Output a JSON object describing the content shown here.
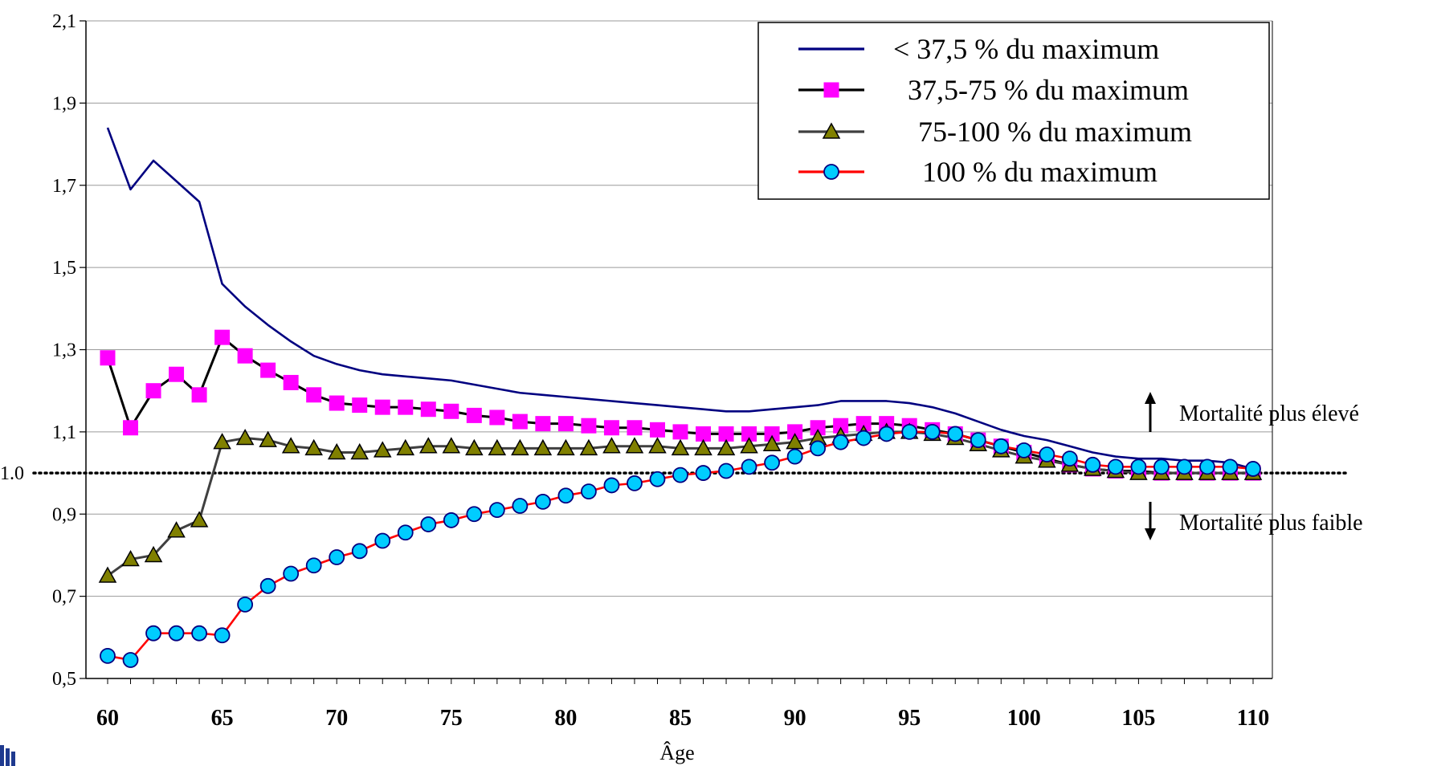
{
  "chart_data": {
    "type": "line",
    "title": "",
    "xlabel": "Âge",
    "ylabel": "",
    "xlim": [
      60,
      110
    ],
    "ylim": [
      0.5,
      2.1
    ],
    "x_ticks": [
      "60",
      "65",
      "70",
      "75",
      "80",
      "85",
      "90",
      "95",
      "100",
      "105",
      "110"
    ],
    "y_ticks": [
      "0,5",
      "0,7",
      "0,9",
      "1,1",
      "1,3",
      "1,5",
      "1,7",
      "1,9",
      "2,1"
    ],
    "grid": "horizontal",
    "legend_position": "top-right",
    "reference_line": {
      "y": 1.0,
      "label": "1.0",
      "style": "dotted"
    },
    "annotations": {
      "up": "Mortalité plus élevé",
      "down": "Mortalité plus faible"
    },
    "x": [
      60,
      61,
      62,
      63,
      64,
      65,
      66,
      67,
      68,
      69,
      70,
      71,
      72,
      73,
      74,
      75,
      76,
      77,
      78,
      79,
      80,
      81,
      82,
      83,
      84,
      85,
      86,
      87,
      88,
      89,
      90,
      91,
      92,
      93,
      94,
      95,
      96,
      97,
      98,
      99,
      100,
      101,
      102,
      103,
      104,
      105,
      106,
      107,
      108,
      109,
      110
    ],
    "series": [
      {
        "name": "< 37,5 % du maximum",
        "color": "#000080",
        "marker": "none",
        "values": [
          1.84,
          1.69,
          1.76,
          1.71,
          1.66,
          1.46,
          1.405,
          1.36,
          1.32,
          1.285,
          1.265,
          1.25,
          1.24,
          1.235,
          1.23,
          1.225,
          1.215,
          1.205,
          1.195,
          1.19,
          1.185,
          1.18,
          1.175,
          1.17,
          1.165,
          1.16,
          1.155,
          1.15,
          1.15,
          1.155,
          1.16,
          1.165,
          1.175,
          1.175,
          1.175,
          1.17,
          1.16,
          1.145,
          1.125,
          1.105,
          1.09,
          1.08,
          1.065,
          1.05,
          1.04,
          1.035,
          1.035,
          1.03,
          1.03,
          1.025,
          1.01
        ]
      },
      {
        "name": "37,5-75 % du maximum",
        "color": "#000000",
        "marker_color": "#ff00ff",
        "marker": "square",
        "values": [
          1.28,
          1.11,
          1.2,
          1.24,
          1.19,
          1.33,
          1.285,
          1.25,
          1.22,
          1.19,
          1.17,
          1.165,
          1.16,
          1.16,
          1.155,
          1.15,
          1.14,
          1.135,
          1.125,
          1.12,
          1.12,
          1.115,
          1.11,
          1.11,
          1.105,
          1.1,
          1.095,
          1.095,
          1.095,
          1.095,
          1.1,
          1.11,
          1.115,
          1.12,
          1.12,
          1.115,
          1.105,
          1.095,
          1.08,
          1.065,
          1.05,
          1.035,
          1.02,
          1.01,
          1.005,
          1.005,
          1.0,
          1.0,
          1.0,
          1.0,
          1.0
        ]
      },
      {
        "name": "75-100 % du maximum",
        "color": "#404040",
        "marker_color": "#808000",
        "marker": "triangle",
        "values": [
          0.75,
          0.79,
          0.8,
          0.86,
          0.885,
          1.075,
          1.085,
          1.08,
          1.065,
          1.06,
          1.05,
          1.05,
          1.055,
          1.06,
          1.065,
          1.065,
          1.06,
          1.06,
          1.06,
          1.06,
          1.06,
          1.06,
          1.065,
          1.065,
          1.065,
          1.06,
          1.06,
          1.06,
          1.065,
          1.07,
          1.075,
          1.085,
          1.09,
          1.095,
          1.1,
          1.1,
          1.095,
          1.085,
          1.07,
          1.055,
          1.04,
          1.03,
          1.02,
          1.01,
          1.005,
          1.0,
          1.0,
          1.0,
          1.0,
          1.0,
          1.0
        ]
      },
      {
        "name": "100 % du maximum",
        "color": "#ff0000",
        "marker_color": "#00ccff",
        "marker": "circle",
        "values": [
          0.555,
          0.545,
          0.61,
          0.61,
          0.61,
          0.605,
          0.68,
          0.725,
          0.755,
          0.775,
          0.795,
          0.81,
          0.835,
          0.855,
          0.875,
          0.885,
          0.9,
          0.91,
          0.92,
          0.93,
          0.945,
          0.955,
          0.97,
          0.975,
          0.985,
          0.995,
          1.0,
          1.005,
          1.015,
          1.025,
          1.04,
          1.06,
          1.075,
          1.085,
          1.095,
          1.1,
          1.1,
          1.095,
          1.08,
          1.065,
          1.055,
          1.045,
          1.035,
          1.02,
          1.015,
          1.015,
          1.015,
          1.015,
          1.015,
          1.015,
          1.01
        ]
      }
    ]
  }
}
